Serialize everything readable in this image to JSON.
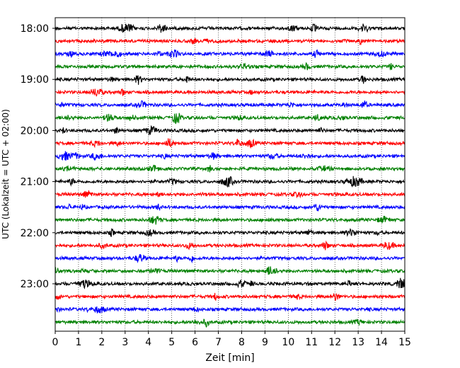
{
  "chart_data": {
    "type": "line",
    "chart_kind": "helicorder",
    "xlabel": "Zeit  [min]",
    "ylabel": "UTC (Lokalzeit = UTC + 02:00)",
    "xlim": [
      0,
      15
    ],
    "x_ticks": [
      0,
      1,
      2,
      3,
      4,
      5,
      6,
      7,
      8,
      9,
      10,
      11,
      12,
      13,
      14,
      15
    ],
    "x_grid": "dotted vertical lines at every minute",
    "row_interval_min": 15,
    "y_tick_labels": [
      "18:00",
      "19:00",
      "20:00",
      "21:00",
      "22:00",
      "23:00"
    ],
    "trace_colors": [
      "#000000",
      "#ff0000",
      "#0000ff",
      "#008000"
    ],
    "rows": [
      {
        "start": "18:00",
        "color": "#000000"
      },
      {
        "start": "18:15",
        "color": "#ff0000"
      },
      {
        "start": "18:30",
        "color": "#0000ff"
      },
      {
        "start": "18:45",
        "color": "#008000"
      },
      {
        "start": "19:00",
        "color": "#000000"
      },
      {
        "start": "19:15",
        "color": "#ff0000"
      },
      {
        "start": "19:30",
        "color": "#0000ff"
      },
      {
        "start": "19:45",
        "color": "#008000"
      },
      {
        "start": "20:00",
        "color": "#000000"
      },
      {
        "start": "20:15",
        "color": "#ff0000"
      },
      {
        "start": "20:30",
        "color": "#0000ff"
      },
      {
        "start": "20:45",
        "color": "#008000"
      },
      {
        "start": "21:00",
        "color": "#000000"
      },
      {
        "start": "21:15",
        "color": "#ff0000"
      },
      {
        "start": "21:30",
        "color": "#0000ff"
      },
      {
        "start": "21:45",
        "color": "#008000"
      },
      {
        "start": "22:00",
        "color": "#000000"
      },
      {
        "start": "22:15",
        "color": "#ff0000"
      },
      {
        "start": "22:30",
        "color": "#0000ff"
      },
      {
        "start": "22:45",
        "color": "#008000"
      },
      {
        "start": "23:00",
        "color": "#000000"
      },
      {
        "start": "23:15",
        "color": "#ff0000"
      },
      {
        "start": "23:30",
        "color": "#0000ff"
      },
      {
        "start": "23:45",
        "color": "#008000"
      }
    ]
  }
}
